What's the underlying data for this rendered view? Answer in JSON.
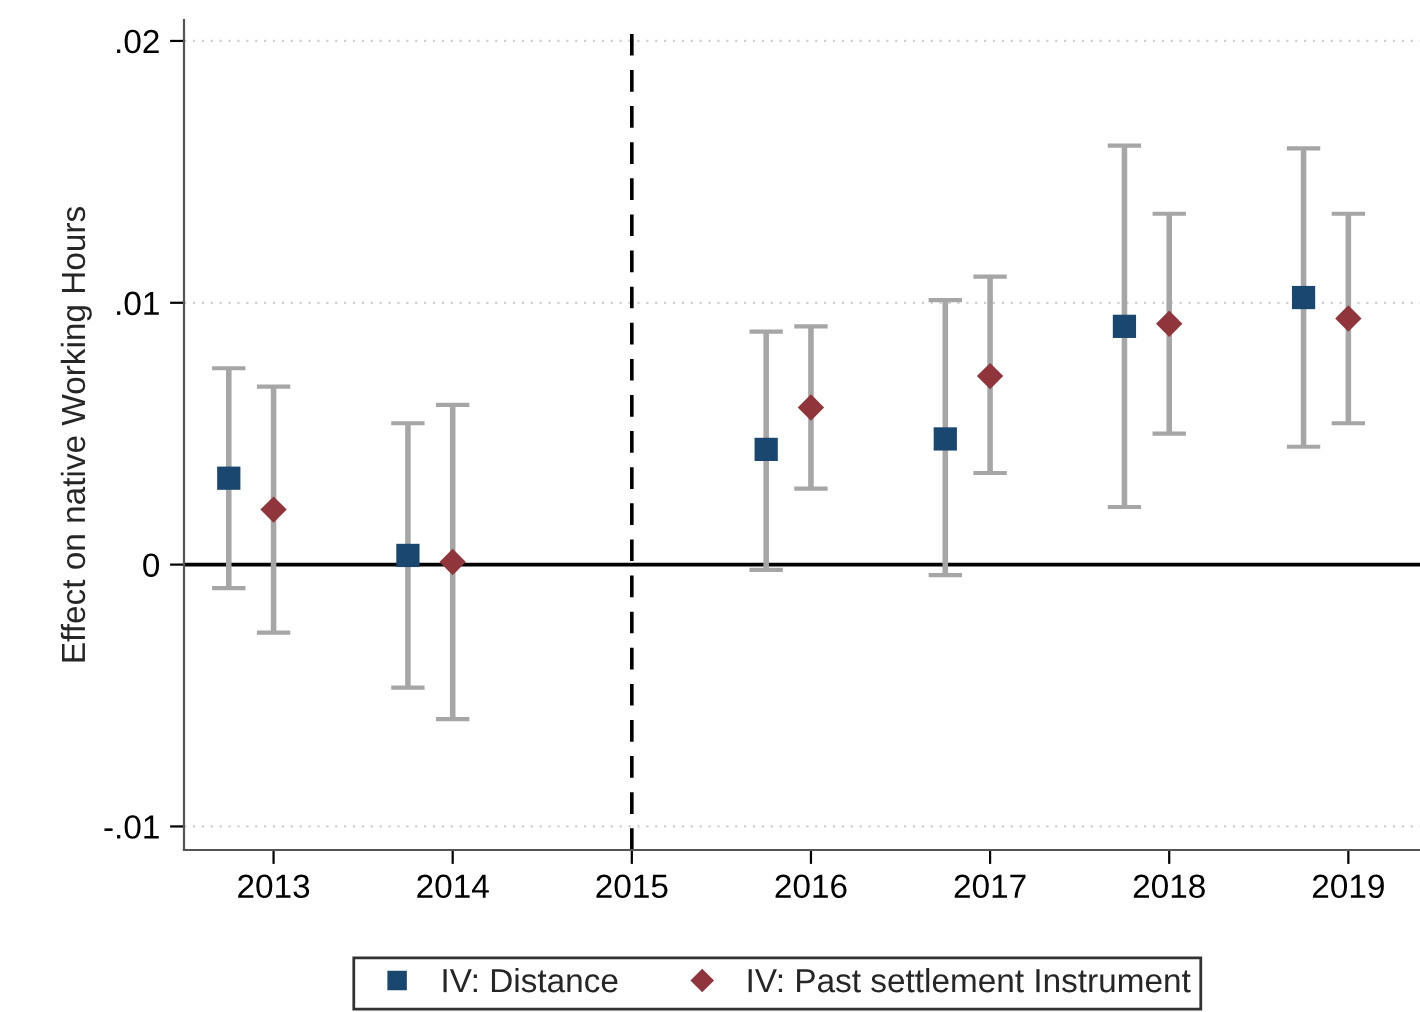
{
  "chart_data": {
    "type": "scatter",
    "ylabel": "Effect on native Working Hours",
    "xlim": [
      2012.5,
      2019.4
    ],
    "xticks": [
      2013,
      2014,
      2015,
      2016,
      2017,
      2018,
      2019
    ],
    "ylim": [
      -0.0109,
      0.0208
    ],
    "yticks": [
      {
        "value": -0.01,
        "label": "-.01"
      },
      {
        "value": 0,
        "label": "0"
      },
      {
        "value": 0.01,
        "label": ".01"
      },
      {
        "value": 0.02,
        "label": ".02"
      }
    ],
    "grid": "y",
    "legend": "bottom",
    "ref_lines": [
      {
        "axis": "y",
        "value": 0,
        "color": "#000000",
        "line_style": "solid"
      },
      {
        "axis": "x",
        "value": 2015,
        "color": "#000000",
        "line_style": "dashed"
      }
    ],
    "series": [
      {
        "name": "IV: Distance",
        "color": "#1a476f",
        "marker": "square",
        "x": [
          2012.75,
          2013.75,
          2015.75,
          2016.75,
          2017.75,
          2018.75
        ],
        "values": [
          0.0033,
          0.00035,
          0.0044,
          0.0048,
          0.0091,
          0.0102
        ],
        "errors": [
          [
            -0.0009,
            0.0075
          ],
          [
            -0.0047,
            0.0054
          ],
          [
            -0.0002,
            0.0089
          ],
          [
            -0.0004,
            0.0101
          ],
          [
            0.0022,
            0.016
          ],
          [
            0.0045,
            0.0159
          ]
        ]
      },
      {
        "name": "IV: Past settlement Instrument",
        "color": "#90353b",
        "marker": "diamond",
        "x": [
          2013,
          2014,
          2016,
          2017,
          2018,
          2019
        ],
        "values": [
          0.0021,
          0.0001,
          0.006,
          0.0072,
          0.0092,
          0.0094
        ],
        "errors": [
          [
            -0.0026,
            0.0068
          ],
          [
            -0.0059,
            0.0061
          ],
          [
            0.0029,
            0.0091
          ],
          [
            0.0035,
            0.011
          ],
          [
            0.005,
            0.0134
          ],
          [
            0.0054,
            0.0134
          ]
        ]
      }
    ]
  }
}
